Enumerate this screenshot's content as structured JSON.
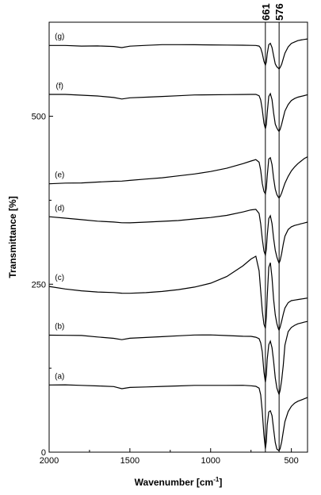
{
  "chart_data": {
    "type": "line",
    "xlabel": "Wavenumber [cm",
    "xlabel_sup": "-1",
    "xlabel_close": "]",
    "ylabel": "Transmittance [%]",
    "xlim": [
      2000,
      400
    ],
    "ylim": [
      0,
      640
    ],
    "x_ticks": [
      2000,
      1500,
      1000,
      500
    ],
    "y_ticks": [
      0,
      250,
      500
    ],
    "reference_lines": [
      {
        "x": 661,
        "label": "661"
      },
      {
        "x": 576,
        "label": "576"
      }
    ],
    "series": [
      {
        "name": "(a)",
        "x": [
          2000,
          1900,
          1800,
          1700,
          1600,
          1550,
          1500,
          1400,
          1300,
          1200,
          1100,
          1000,
          900,
          800,
          750,
          720,
          700,
          690,
          680,
          670,
          661,
          655,
          650,
          640,
          630,
          620,
          610,
          600,
          590,
          580,
          576,
          570,
          560,
          550,
          540,
          520,
          500,
          480,
          460,
          440,
          420,
          400
        ],
        "y": [
          100,
          100,
          99,
          98,
          97,
          94,
          96,
          97,
          98,
          99,
          100,
          100,
          100,
          100,
          99,
          98,
          95,
          85,
          60,
          25,
          5,
          15,
          40,
          60,
          62,
          55,
          35,
          15,
          5,
          3,
          2,
          5,
          15,
          30,
          45,
          60,
          68,
          73,
          76,
          78,
          80,
          82
        ]
      },
      {
        "name": "(b)",
        "x": [
          2000,
          1900,
          1800,
          1700,
          1600,
          1550,
          1500,
          1400,
          1300,
          1200,
          1100,
          1000,
          900,
          800,
          750,
          720,
          700,
          690,
          680,
          670,
          661,
          655,
          650,
          640,
          630,
          620,
          610,
          600,
          590,
          580,
          576,
          570,
          560,
          550,
          540,
          520,
          500,
          480,
          460,
          440,
          420,
          400
        ],
        "y": [
          174,
          174,
          174,
          172,
          170,
          168,
          170,
          171,
          172,
          173,
          174,
          174,
          173,
          172,
          172,
          171,
          169,
          163,
          150,
          120,
          105,
          115,
          138,
          160,
          165,
          155,
          135,
          110,
          95,
          88,
          86,
          92,
          108,
          130,
          160,
          180,
          186,
          189,
          191,
          192,
          193,
          194
        ]
      },
      {
        "name": "(c)",
        "x": [
          2000,
          1900,
          1800,
          1700,
          1600,
          1550,
          1500,
          1400,
          1300,
          1200,
          1100,
          1000,
          900,
          800,
          750,
          720,
          700,
          690,
          680,
          670,
          661,
          655,
          650,
          640,
          630,
          620,
          610,
          600,
          590,
          580,
          576,
          570,
          560,
          550,
          540,
          520,
          500,
          480,
          460,
          440,
          420,
          400
        ],
        "y": [
          247,
          243,
          240,
          238,
          237,
          236,
          236,
          237,
          239,
          242,
          246,
          252,
          262,
          278,
          288,
          292,
          270,
          240,
          210,
          190,
          184,
          200,
          230,
          275,
          282,
          260,
          228,
          205,
          192,
          184,
          182,
          186,
          195,
          205,
          214,
          222,
          225,
          226,
          227,
          228,
          229,
          230
        ]
      },
      {
        "name": "(d)",
        "x": [
          2000,
          1900,
          1800,
          1700,
          1600,
          1550,
          1500,
          1400,
          1300,
          1200,
          1100,
          1000,
          900,
          800,
          750,
          720,
          700,
          690,
          680,
          670,
          661,
          655,
          650,
          640,
          630,
          620,
          610,
          600,
          590,
          580,
          576,
          570,
          560,
          550,
          540,
          520,
          500,
          480,
          460,
          440,
          420,
          400
        ],
        "y": [
          350,
          348,
          346,
          344,
          343,
          342,
          342,
          343,
          344,
          345,
          347,
          349,
          352,
          357,
          360,
          361,
          355,
          340,
          318,
          300,
          294,
          302,
          322,
          348,
          352,
          340,
          318,
          300,
          290,
          283,
          281,
          285,
          296,
          310,
          322,
          332,
          336,
          338,
          339,
          340,
          341,
          342
        ]
      },
      {
        "name": "(e)",
        "x": [
          2000,
          1900,
          1800,
          1700,
          1600,
          1550,
          1500,
          1400,
          1300,
          1200,
          1100,
          1000,
          900,
          800,
          750,
          720,
          700,
          690,
          680,
          670,
          661,
          655,
          650,
          640,
          630,
          620,
          610,
          600,
          590,
          580,
          576,
          570,
          560,
          550,
          540,
          520,
          500,
          480,
          460,
          440,
          420,
          400
        ],
        "y": [
          400,
          401,
          401,
          402,
          403,
          403,
          404,
          406,
          408,
          411,
          414,
          418,
          423,
          430,
          434,
          436,
          432,
          420,
          400,
          388,
          384,
          392,
          410,
          436,
          438,
          428,
          408,
          392,
          384,
          380,
          379,
          381,
          386,
          393,
          400,
          410,
          418,
          424,
          429,
          433,
          437,
          440
        ]
      },
      {
        "name": "(f)",
        "x": [
          2000,
          1900,
          1800,
          1700,
          1600,
          1550,
          1500,
          1400,
          1300,
          1200,
          1100,
          1000,
          900,
          800,
          750,
          720,
          700,
          690,
          680,
          670,
          661,
          655,
          650,
          640,
          630,
          620,
          610,
          600,
          590,
          580,
          576,
          570,
          560,
          550,
          540,
          520,
          500,
          480,
          460,
          440,
          420,
          400
        ],
        "y": [
          532,
          532,
          531,
          530,
          528,
          526,
          528,
          529,
          530,
          531,
          532,
          532,
          532,
          532,
          532,
          532,
          530,
          524,
          510,
          490,
          482,
          488,
          505,
          530,
          534,
          525,
          505,
          488,
          482,
          478,
          477,
          480,
          488,
          498,
          508,
          518,
          524,
          527,
          529,
          530,
          531,
          532
        ]
      },
      {
        "name": "(g)",
        "x": [
          2000,
          1900,
          1800,
          1700,
          1600,
          1550,
          1500,
          1400,
          1300,
          1200,
          1100,
          1000,
          900,
          800,
          750,
          720,
          700,
          690,
          680,
          670,
          661,
          655,
          650,
          640,
          630,
          620,
          610,
          600,
          590,
          580,
          576,
          570,
          560,
          550,
          540,
          520,
          500,
          480,
          460,
          440,
          420,
          400
        ],
        "y": [
          606,
          606,
          605,
          605,
          604,
          602,
          604,
          605,
          606,
          606,
          606,
          606,
          606,
          606,
          606,
          606,
          605,
          602,
          594,
          582,
          576,
          580,
          592,
          606,
          608,
          602,
          590,
          578,
          574,
          572,
          571,
          573,
          578,
          586,
          594,
          603,
          608,
          610,
          612,
          613,
          614,
          615
        ]
      }
    ]
  }
}
